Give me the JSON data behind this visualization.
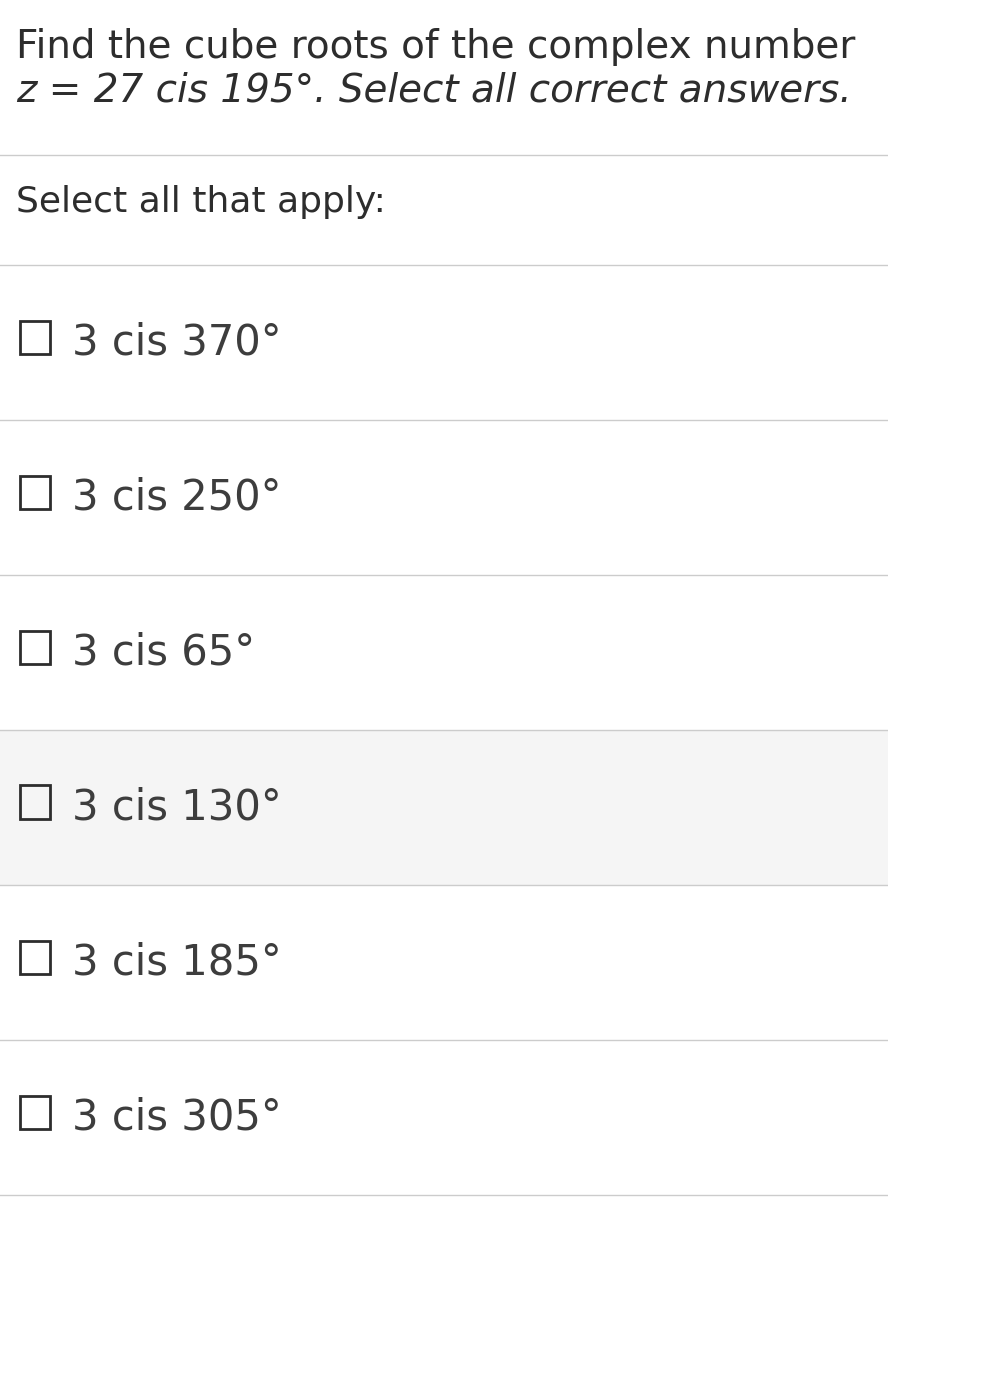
{
  "title_line1": "Find the cube roots of the complex number",
  "title_line2": "z = 27 cis 195°. Select all correct answers.",
  "select_label": "Select all that apply:",
  "options": [
    "3 cis 370°",
    "3 cis 250°",
    "3 cis 65°",
    "3 cis 130°",
    "3 cis 185°",
    "3 cis 305°"
  ],
  "highlighted_row": 3,
  "background_color": "#ffffff",
  "highlight_color": "#f5f5f5",
  "text_color": "#3d3d3d",
  "title_color": "#2d2d2d",
  "divider_color": "#cccccc",
  "checkbox_color": "#2d2d2d",
  "title_fontsize": 28,
  "select_fontsize": 26,
  "option_fontsize": 30,
  "checkbox_size": 22
}
